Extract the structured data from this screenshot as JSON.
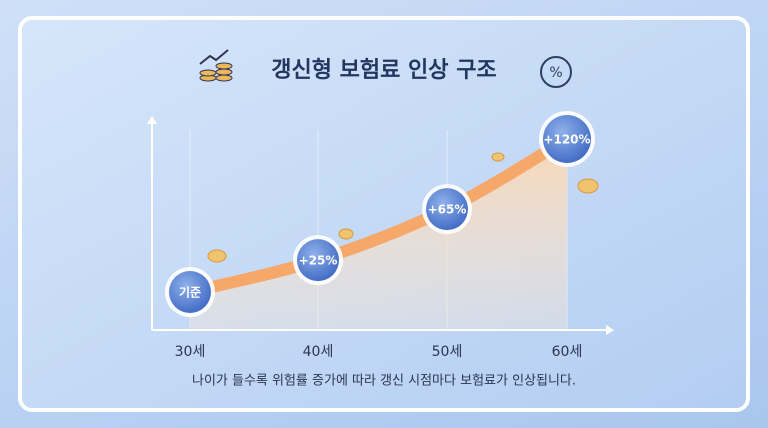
{
  "chart_data": {
    "type": "line",
    "title": "갱신형 보험료 인상 구조",
    "categories": [
      "30세",
      "40세",
      "50세",
      "60세"
    ],
    "values": [
      0,
      25,
      65,
      120
    ],
    "value_labels": [
      "기준",
      "+25%",
      "+65%",
      "+120%"
    ],
    "color": "#f6a86a",
    "caption": "나이가 들수록 위험률 증가에 따라 갱신 시점마다 보험료가 인상됩니다."
  }
}
